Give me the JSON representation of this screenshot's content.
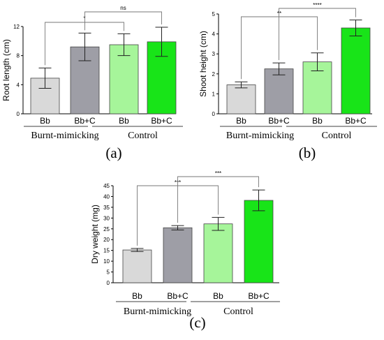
{
  "chart_data": [
    {
      "type": "bar",
      "panel": "(a)",
      "title": "",
      "ylabel": "Root length (cm)",
      "ylim": [
        0,
        12
      ],
      "yticks": [
        0,
        4,
        8,
        12
      ],
      "categories": [
        "Bb",
        "Bb+C",
        "Bb",
        "Bb+C"
      ],
      "groups": [
        {
          "label": "Burnt-mimicking",
          "categories": [
            0,
            1
          ]
        },
        {
          "label": "Control",
          "categories": [
            2,
            3
          ]
        }
      ],
      "values": [
        4.9,
        9.2,
        9.5,
        9.9
      ],
      "errors": [
        1.4,
        1.9,
        1.5,
        2.0
      ],
      "colors": [
        "#d9d9d9",
        "#9e9ea6",
        "#a6f59a",
        "#18e418"
      ],
      "significance": [
        {
          "from": 0,
          "to": 2,
          "label": "*"
        },
        {
          "from": 1,
          "to": 3,
          "label": "ns"
        }
      ]
    },
    {
      "type": "bar",
      "panel": "(b)",
      "title": "",
      "ylabel": "Shoot height (cm)",
      "ylim": [
        0,
        5
      ],
      "yticks": [
        0,
        1,
        2,
        3,
        4,
        5
      ],
      "categories": [
        "Bb",
        "Bb+C",
        "Bb",
        "Bb+C"
      ],
      "groups": [
        {
          "label": "Burnt-mimicking",
          "categories": [
            0,
            1
          ]
        },
        {
          "label": "Control",
          "categories": [
            2,
            3
          ]
        }
      ],
      "values": [
        1.45,
        2.25,
        2.6,
        4.3
      ],
      "errors": [
        0.15,
        0.3,
        0.45,
        0.4
      ],
      "colors": [
        "#d9d9d9",
        "#9e9ea6",
        "#a6f59a",
        "#18e418"
      ],
      "significance": [
        {
          "from": 0,
          "to": 2,
          "label": "**"
        },
        {
          "from": 1,
          "to": 3,
          "label": "****"
        }
      ]
    },
    {
      "type": "bar",
      "panel": "(c)",
      "title": "",
      "ylabel": "Dry weight (mg)",
      "ylim": [
        0,
        45
      ],
      "yticks": [
        0,
        5,
        10,
        15,
        20,
        25,
        30,
        35,
        40,
        45
      ],
      "categories": [
        "Bb",
        "Bb+C",
        "Bb",
        "Bb+C"
      ],
      "groups": [
        {
          "label": "Burnt-mimicking",
          "categories": [
            0,
            1
          ]
        },
        {
          "label": "Control",
          "categories": [
            2,
            3
          ]
        }
      ],
      "values": [
        15.2,
        25.5,
        27.3,
        38.2
      ],
      "errors": [
        0.7,
        1.0,
        3.0,
        4.8
      ],
      "colors": [
        "#d9d9d9",
        "#9e9ea6",
        "#a6f59a",
        "#18e418"
      ],
      "significance": [
        {
          "from": 0,
          "to": 2,
          "label": "***"
        },
        {
          "from": 1,
          "to": 3,
          "label": "***"
        }
      ]
    }
  ]
}
